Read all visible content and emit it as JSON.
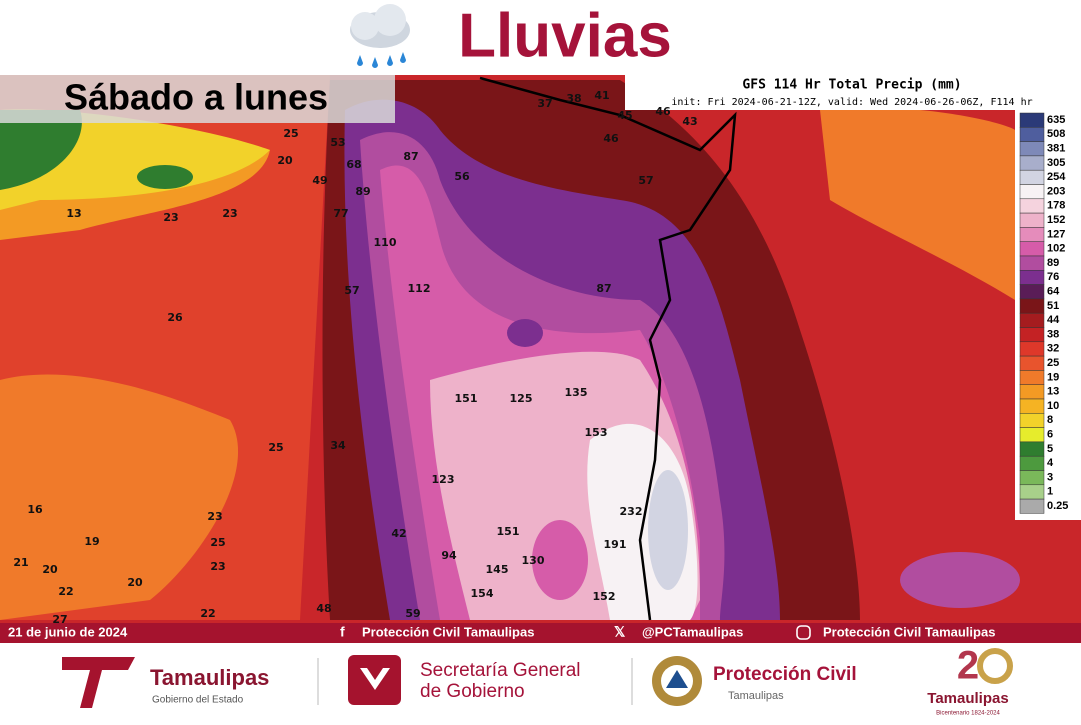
{
  "header": {
    "title": "Lluvias"
  },
  "map": {
    "period": "Sábado a lunes",
    "model_title": "GFS 114 Hr Total Precip (mm)",
    "model_subtitle": "init: Fri 2024-06-21-12Z, valid: Wed 2024-06-26-06Z, F114 hr",
    "legend": [
      {
        "value": 635,
        "color": "#2b3a78"
      },
      {
        "value": 508,
        "color": "#4f5e9e"
      },
      {
        "value": 381,
        "color": "#7e89b8"
      },
      {
        "value": 305,
        "color": "#a8aecb"
      },
      {
        "value": 254,
        "color": "#d2d4e2"
      },
      {
        "value": 203,
        "color": "#f7f2f4"
      },
      {
        "value": 178,
        "color": "#f5d3de"
      },
      {
        "value": 152,
        "color": "#eeb2ca"
      },
      {
        "value": 127,
        "color": "#e58cbb"
      },
      {
        "value": 102,
        "color": "#d65ca9"
      },
      {
        "value": 89,
        "color": "#b14d9f"
      },
      {
        "value": 76,
        "color": "#7c2f8f"
      },
      {
        "value": 64,
        "color": "#5a1d57"
      },
      {
        "value": 51,
        "color": "#7a1518"
      },
      {
        "value": 44,
        "color": "#a51c1f"
      },
      {
        "value": 38,
        "color": "#c42224"
      },
      {
        "value": 32,
        "color": "#de382a"
      },
      {
        "value": 25,
        "color": "#e8542d"
      },
      {
        "value": 19,
        "color": "#f07a2a"
      },
      {
        "value": 13,
        "color": "#f39a24"
      },
      {
        "value": 10,
        "color": "#f5b323"
      },
      {
        "value": 8,
        "color": "#f2d22a"
      },
      {
        "value": 6,
        "color": "#e6ec2c"
      },
      {
        "value": 5,
        "color": "#2f7d2f"
      },
      {
        "value": 4,
        "color": "#4d9a3e"
      },
      {
        "value": 3,
        "color": "#7ab85a"
      },
      {
        "value": 1,
        "color": "#a8d08a"
      },
      {
        "value": 0.25,
        "color": "#aaaaaa"
      }
    ],
    "labels": [
      25,
      53,
      20,
      68,
      87,
      49,
      89,
      56,
      57,
      13,
      23,
      23,
      77,
      110,
      57,
      112,
      87,
      26,
      151,
      125,
      135,
      153,
      25,
      34,
      123,
      232,
      16,
      23,
      42,
      151,
      19,
      25,
      191,
      94,
      130,
      21,
      20,
      23,
      145,
      22,
      20,
      154,
      152,
      22,
      48,
      59,
      38,
      41,
      45,
      46,
      43,
      46,
      37,
      27
    ]
  },
  "footer": {
    "date": "21 de junio de 2024",
    "facebook": "Protección Civil Tamaulipas",
    "twitter": "@PCTamaulipas",
    "instagram": "Protección Civil Tamaulipas"
  },
  "logos": {
    "gob_name": "Tamaulipas",
    "gob_sub": "Gobierno del Estado",
    "sgg_line1": "Secretaría General",
    "sgg_line2": "de Gobierno",
    "pc_name": "Protección Civil",
    "pc_sub": "Tamaulipas",
    "bic_name": "Tamaulipas",
    "bic_sub": "Bicentenario 1824-2024"
  }
}
